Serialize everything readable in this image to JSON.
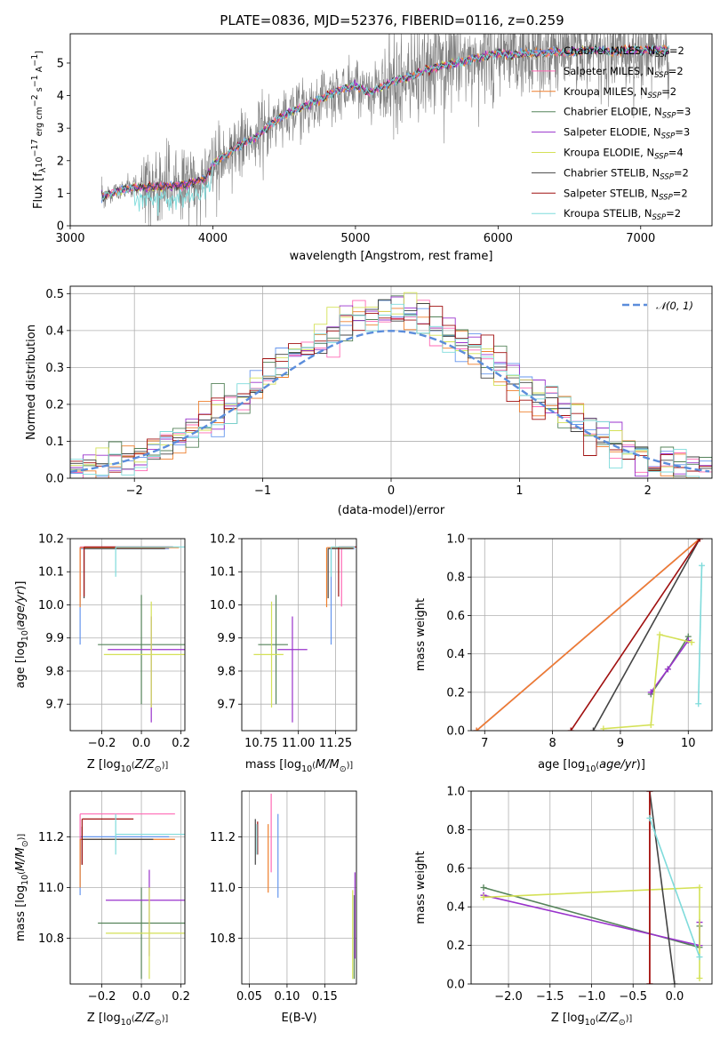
{
  "figure": {
    "title": "PLATE=0836, MJD=52376, FIBERID=0116, z=0.259"
  },
  "chart_data": [
    {
      "id": "spectrum",
      "type": "line",
      "title": "PLATE=0836, MJD=52376, FIBERID=0116, z=0.259",
      "xlabel": "wavelength [Angstrom, rest frame]",
      "ylabel": "Flux [f_λ 10^-17 erg cm^-2 s^-1 A^-1]",
      "xlim": [
        3000,
        7500
      ],
      "ylim": [
        0,
        5.9
      ],
      "xticks": [
        3000,
        4000,
        5000,
        6000,
        7000
      ],
      "yticks": [
        0,
        1,
        2,
        3,
        4,
        5
      ],
      "grid": false,
      "legend_position": "top-right",
      "data_color": "#808080",
      "legend": [
        {
          "label": "Chabrier MILES, N_SSP=2",
          "color": "#6495ed"
        },
        {
          "label": "Salpeter MILES, N_SSP=2",
          "color": "#ff69b4"
        },
        {
          "label": "Kroupa MILES, N_SSP=2",
          "color": "#ee7f2d"
        },
        {
          "label": "Chabrier ELODIE, N_SSP=3",
          "color": "#55835a"
        },
        {
          "label": "Salpeter ELODIE, N_SSP=3",
          "color": "#9932cc"
        },
        {
          "label": "Kroupa ELODIE, N_SSP=4",
          "color": "#d4e157"
        },
        {
          "label": "Chabrier STELIB, N_SSP=2",
          "color": "#444444"
        },
        {
          "label": "Salpeter STELIB, N_SSP=2",
          "color": "#a01010"
        },
        {
          "label": "Kroupa STELIB, N_SSP=2",
          "color": "#7fdbdb"
        }
      ],
      "model_continuum": {
        "wavelength": [
          3220,
          3400,
          3600,
          3800,
          3950,
          4000,
          4100,
          4200,
          4300,
          4400,
          4500,
          4600,
          4700,
          4800,
          4900,
          5000,
          5100,
          5200,
          5300,
          5400,
          5500,
          5600,
          5700,
          5800,
          5900,
          6000,
          6100,
          6200,
          6300,
          6400,
          6500,
          6600,
          6700,
          6800,
          6900,
          7000,
          7100,
          7200
        ],
        "flux": [
          0.9,
          1.15,
          1.2,
          1.25,
          1.45,
          1.9,
          2.2,
          2.5,
          2.7,
          3.1,
          3.4,
          3.6,
          3.8,
          4.0,
          4.2,
          4.3,
          4.1,
          4.3,
          4.5,
          4.6,
          4.8,
          4.9,
          5.0,
          5.1,
          5.2,
          5.3,
          5.25,
          5.3,
          5.3,
          5.35,
          5.3,
          5.4,
          5.4,
          5.35,
          5.4,
          5.4,
          5.4,
          5.4
        ]
      }
    },
    {
      "id": "residuals",
      "type": "histogram",
      "xlabel": "(data-model)/error",
      "ylabel": "Normed distribution",
      "xlim": [
        -2.5,
        2.5
      ],
      "ylim": [
        0,
        0.52
      ],
      "xticks": [
        -2,
        -1,
        0,
        1,
        2
      ],
      "yticks": [
        0.0,
        0.1,
        0.2,
        0.3,
        0.4,
        0.5
      ],
      "grid": true,
      "legend_position": "top-right",
      "legend_label": "𝒩(0, 1)",
      "curve_color": "#5b8ddb"
    },
    {
      "id": "age_vs_Z",
      "type": "scatter",
      "xlabel": "Z [log10(Z/Z⊙)]",
      "ylabel": "age [log10(age/yr)]",
      "xlim": [
        -0.36,
        0.22
      ],
      "ylim": [
        9.62,
        10.2
      ],
      "xticks": [
        -0.2,
        0.0,
        0.2
      ],
      "yticks": [
        9.7,
        9.8,
        9.9,
        10.0,
        10.1,
        10.2
      ],
      "grid": true,
      "points": [
        {
          "model": "Chabrier MILES",
          "x": -0.31,
          "y": 10.17,
          "xerr": [
            0.0,
            0.45
          ],
          "yerr": [
            0.29,
            0.0
          ]
        },
        {
          "model": "Salpeter MILES",
          "x": -0.31,
          "y": 10.175,
          "xerr": [
            0.0,
            0.45
          ],
          "yerr": [
            0.15,
            0.0
          ]
        },
        {
          "model": "Kroupa MILES",
          "x": -0.31,
          "y": 10.173,
          "xerr": [
            0.0,
            0.5
          ],
          "yerr": [
            0.18,
            0.0
          ]
        },
        {
          "model": "Chabrier ELODIE",
          "x": 0.0,
          "y": 9.88,
          "xerr": [
            0.22,
            0.36
          ],
          "yerr": [
            0.18,
            0.15
          ]
        },
        {
          "model": "Salpeter ELODIE",
          "x": 0.05,
          "y": 9.865,
          "xerr": [
            0.22,
            0.3
          ],
          "yerr": [
            0.22,
            0.1
          ]
        },
        {
          "model": "Kroupa ELODIE",
          "x": 0.05,
          "y": 9.85,
          "xerr": [
            0.24,
            0.35
          ],
          "yerr": [
            0.16,
            0.16
          ]
        },
        {
          "model": "Chabrier STELIB",
          "x": -0.29,
          "y": 10.17,
          "xerr": [
            0.0,
            0.41
          ],
          "yerr": [
            0.15,
            0.0
          ]
        },
        {
          "model": "Salpeter STELIB",
          "x": -0.29,
          "y": 10.175,
          "xerr": [
            0.0,
            0.45
          ],
          "yerr": [
            0.15,
            0.0
          ]
        },
        {
          "model": "Kroupa STELIB",
          "x": -0.13,
          "y": 10.175,
          "xerr": [
            0.0,
            0.35
          ],
          "yerr": [
            0.09,
            0.0
          ]
        }
      ]
    },
    {
      "id": "age_vs_mass",
      "type": "scatter",
      "xlabel": "mass [log10(M/M⊙)]",
      "ylabel": "",
      "xlim": [
        10.62,
        11.39
      ],
      "ylim": [
        9.62,
        10.2
      ],
      "xticks": [
        10.75,
        11.0,
        11.25
      ],
      "yticks": [
        9.7,
        9.8,
        9.9,
        10.0,
        10.1,
        10.2
      ],
      "grid": true,
      "points": [
        {
          "model": "Chabrier MILES",
          "x": 11.22,
          "y": 10.17,
          "xerr": [
            0.0,
            0.16
          ],
          "yerr": [
            0.29,
            0.0
          ]
        },
        {
          "model": "Salpeter MILES",
          "x": 11.29,
          "y": 10.175,
          "xerr": [
            0.0,
            0.2
          ],
          "yerr": [
            0.18,
            0.0
          ]
        },
        {
          "model": "Kroupa MILES",
          "x": 11.19,
          "y": 10.173,
          "xerr": [
            0.0,
            0.18
          ],
          "yerr": [
            0.18,
            0.0
          ]
        },
        {
          "model": "Chabrier ELODIE",
          "x": 10.85,
          "y": 9.88,
          "xerr": [
            0.12,
            0.08
          ],
          "yerr": [
            0.18,
            0.15
          ]
        },
        {
          "model": "Salpeter ELODIE",
          "x": 10.96,
          "y": 9.865,
          "xerr": [
            0.1,
            0.1
          ],
          "yerr": [
            0.22,
            0.1
          ]
        },
        {
          "model": "Kroupa ELODIE",
          "x": 10.82,
          "y": 9.85,
          "xerr": [
            0.12,
            0.08
          ],
          "yerr": [
            0.16,
            0.16
          ]
        },
        {
          "model": "Chabrier STELIB",
          "x": 11.2,
          "y": 10.17,
          "xerr": [
            0.0,
            0.17
          ],
          "yerr": [
            0.15,
            0.0
          ]
        },
        {
          "model": "Salpeter STELIB",
          "x": 11.27,
          "y": 10.175,
          "xerr": [
            0.0,
            0.15
          ],
          "yerr": [
            0.15,
            0.0
          ]
        },
        {
          "model": "Kroupa STELIB",
          "x": 11.22,
          "y": 10.175,
          "xerr": [
            0.0,
            0.16
          ],
          "yerr": [
            0.09,
            0.0
          ]
        }
      ]
    },
    {
      "id": "massweight_vs_age",
      "type": "line",
      "xlabel": "age [log10(age/yr)]",
      "ylabel": "mass weight",
      "xlim": [
        6.8,
        10.35
      ],
      "ylim": [
        0,
        1
      ],
      "xticks": [
        7,
        8,
        9,
        10
      ],
      "yticks": [
        0.0,
        0.2,
        0.4,
        0.6,
        0.8,
        1.0
      ],
      "grid": true,
      "series": [
        {
          "model": "Chabrier MILES",
          "x": [
            6.88,
            10.17
          ],
          "y": [
            0.0,
            1.0
          ]
        },
        {
          "model": "Salpeter MILES",
          "x": [
            6.88,
            10.17
          ],
          "y": [
            0.0,
            1.0
          ]
        },
        {
          "model": "Kroupa MILES",
          "x": [
            6.88,
            10.17
          ],
          "y": [
            0.0,
            1.0
          ]
        },
        {
          "model": "Chabrier ELODIE",
          "x": [
            9.45,
            9.7,
            10.0
          ],
          "y": [
            0.19,
            0.32,
            0.49
          ]
        },
        {
          "model": "Salpeter ELODIE",
          "x": [
            9.45,
            9.7,
            10.0
          ],
          "y": [
            0.2,
            0.32,
            0.47
          ]
        },
        {
          "model": "Kroupa ELODIE",
          "x": [
            8.75,
            9.45,
            9.58,
            10.05
          ],
          "y": [
            0.01,
            0.03,
            0.5,
            0.46
          ]
        },
        {
          "model": "Chabrier STELIB",
          "x": [
            8.6,
            10.17
          ],
          "y": [
            0.0,
            1.0
          ]
        },
        {
          "model": "Salpeter STELIB",
          "x": [
            8.27,
            10.17
          ],
          "y": [
            0.0,
            1.0
          ]
        },
        {
          "model": "Kroupa STELIB",
          "x": [
            10.15,
            10.2
          ],
          "y": [
            0.14,
            0.86
          ]
        }
      ]
    },
    {
      "id": "mass_vs_Z",
      "type": "scatter",
      "xlabel": "Z [log10(Z/Z⊙)]",
      "ylabel": "mass [log10(M/M⊙)]",
      "xlim": [
        -0.36,
        0.22
      ],
      "ylim": [
        10.62,
        11.38
      ],
      "xticks": [
        -0.2,
        0.0,
        0.2
      ],
      "yticks": [
        10.8,
        11.0,
        11.2
      ],
      "grid": true,
      "points": [
        {
          "model": "Chabrier MILES",
          "x": -0.31,
          "y": 11.2,
          "xerr": [
            0.0,
            0.45
          ],
          "yerr": [
            0.23,
            0.0
          ]
        },
        {
          "model": "Salpeter MILES",
          "x": -0.31,
          "y": 11.29,
          "xerr": [
            0.0,
            0.48
          ],
          "yerr": [
            0.2,
            0.0
          ]
        },
        {
          "model": "Kroupa MILES",
          "x": -0.31,
          "y": 11.19,
          "xerr": [
            0.0,
            0.48
          ],
          "yerr": [
            0.19,
            0.0
          ]
        },
        {
          "model": "Chabrier ELODIE",
          "x": 0.0,
          "y": 10.86,
          "xerr": [
            0.22,
            0.36
          ],
          "yerr": [
            0.22,
            0.14
          ]
        },
        {
          "model": "Salpeter ELODIE",
          "x": 0.04,
          "y": 10.95,
          "xerr": [
            0.22,
            0.32
          ],
          "yerr": [
            0.22,
            0.12
          ]
        },
        {
          "model": "Kroupa ELODIE",
          "x": 0.04,
          "y": 10.82,
          "xerr": [
            0.22,
            0.35
          ],
          "yerr": [
            0.18,
            0.18
          ]
        },
        {
          "model": "Chabrier STELIB",
          "x": -0.3,
          "y": 11.19,
          "xerr": [
            0.0,
            0.36
          ],
          "yerr": [
            0.1,
            0.05
          ]
        },
        {
          "model": "Salpeter STELIB",
          "x": -0.3,
          "y": 11.27,
          "xerr": [
            0.0,
            0.26
          ],
          "yerr": [
            0.18,
            0.0
          ]
        },
        {
          "model": "Kroupa STELIB",
          "x": -0.13,
          "y": 11.21,
          "xerr": [
            0.0,
            0.37
          ],
          "yerr": [
            0.08,
            0.08
          ]
        }
      ]
    },
    {
      "id": "mass_vs_EBV",
      "type": "scatter",
      "xlabel": "E(B-V)",
      "ylabel": "",
      "xlim": [
        0.04,
        0.192
      ],
      "ylim": [
        10.62,
        11.38
      ],
      "xticks": [
        0.05,
        0.1,
        0.15
      ],
      "yticks": [
        10.8,
        11.0,
        11.2
      ],
      "grid": true,
      "points": [
        {
          "model": "Chabrier MILES",
          "x": 0.088,
          "y": 11.1,
          "yerr": [
            0.14,
            0.19
          ]
        },
        {
          "model": "Salpeter MILES",
          "x": 0.079,
          "y": 11.22,
          "yerr": [
            0.16,
            0.15
          ]
        },
        {
          "model": "Kroupa MILES",
          "x": 0.075,
          "y": 11.1,
          "yerr": [
            0.12,
            0.15
          ]
        },
        {
          "model": "Chabrier ELODIE",
          "x": 0.189,
          "y": 10.85,
          "yerr": [
            0.21,
            0.12
          ]
        },
        {
          "model": "Salpeter ELODIE",
          "x": 0.19,
          "y": 10.9,
          "yerr": [
            0.18,
            0.16
          ]
        },
        {
          "model": "Kroupa ELODIE",
          "x": 0.187,
          "y": 10.85,
          "yerr": [
            0.21,
            0.14
          ]
        },
        {
          "model": "Chabrier STELIB",
          "x": 0.058,
          "y": 11.21,
          "yerr": [
            0.12,
            0.06
          ]
        },
        {
          "model": "Salpeter STELIB",
          "x": 0.061,
          "y": 11.2,
          "yerr": [
            0.07,
            0.06
          ]
        },
        {
          "model": "Kroupa STELIB",
          "x": 0.06,
          "y": 11.19,
          "yerr": [
            0.06,
            0.06
          ]
        }
      ]
    },
    {
      "id": "massweight_vs_Z",
      "type": "line",
      "xlabel": "Z [log10(Z/Z⊙)]",
      "ylabel": "mass weight",
      "xlim": [
        -2.45,
        0.45
      ],
      "ylim": [
        0,
        1
      ],
      "xticks": [
        -2.0,
        -1.5,
        -1.0,
        -0.5,
        0.0
      ],
      "yticks": [
        0.0,
        0.2,
        0.4,
        0.6,
        0.8,
        1.0
      ],
      "grid": true,
      "series": [
        {
          "model": "Chabrier MILES",
          "x": [
            -0.3,
            -0.3
          ],
          "y": [
            0.0,
            1.0
          ]
        },
        {
          "model": "Salpeter MILES",
          "x": [
            -0.3,
            -0.3
          ],
          "y": [
            0.0,
            1.0
          ]
        },
        {
          "model": "Kroupa MILES",
          "x": [
            -0.3,
            -0.3
          ],
          "y": [
            0.0,
            1.0
          ]
        },
        {
          "model": "Chabrier ELODIE",
          "x": [
            -2.3,
            0.3,
            0.3
          ],
          "y": [
            0.5,
            0.19,
            0.3
          ]
        },
        {
          "model": "Salpeter ELODIE",
          "x": [
            -2.3,
            0.3,
            0.3
          ],
          "y": [
            0.46,
            0.2,
            0.32
          ]
        },
        {
          "model": "Kroupa ELODIE",
          "x": [
            -2.3,
            0.3,
            0.3
          ],
          "y": [
            0.45,
            0.5,
            0.03
          ]
        },
        {
          "model": "Chabrier STELIB",
          "x": [
            -0.3,
            0.0
          ],
          "y": [
            1.0,
            0.0
          ]
        },
        {
          "model": "Salpeter STELIB",
          "x": [
            -0.3,
            -0.3
          ],
          "y": [
            0.0,
            1.0
          ]
        },
        {
          "model": "Kroupa STELIB",
          "x": [
            -0.3,
            0.3
          ],
          "y": [
            0.86,
            0.14
          ]
        }
      ]
    }
  ]
}
